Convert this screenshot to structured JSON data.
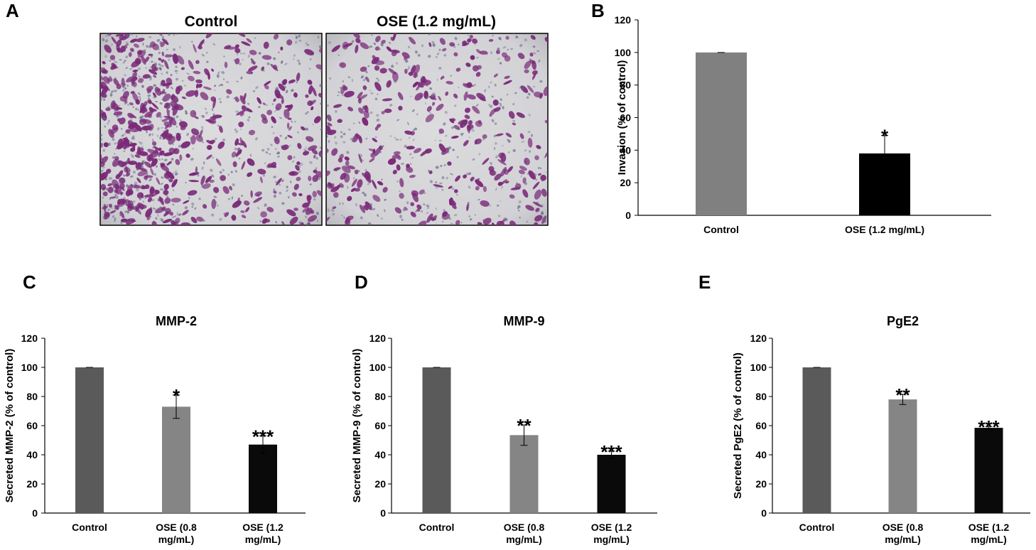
{
  "panels": {
    "A": {
      "letter": "A",
      "images": [
        {
          "title": "Control",
          "density": "high"
        },
        {
          "title": "OSE (1.2 mg/mL)",
          "density": "low"
        }
      ],
      "colors": {
        "stain": "#7a2a78",
        "background": "#d8d8da"
      }
    }
  },
  "chart_data": [
    {
      "letter": "B",
      "type": "bar",
      "title": "",
      "ylabel": "Invasion (% of control)",
      "xlabel": "",
      "ylim": [
        0,
        120
      ],
      "yticks": [
        0,
        20,
        40,
        60,
        80,
        100,
        120
      ],
      "grid": false,
      "categories": [
        [
          "Control"
        ],
        [
          "OSE (1.2 mg/mL)"
        ]
      ],
      "values": [
        100,
        38
      ],
      "errors": [
        0,
        11
      ],
      "significance": [
        "",
        "*"
      ],
      "colors": [
        "#808080",
        "#000000"
      ]
    },
    {
      "letter": "C",
      "type": "bar",
      "title": "MMP-2",
      "ylabel": "Secreted MMP-2 (% of control)",
      "xlabel": "",
      "ylim": [
        0,
        120
      ],
      "yticks": [
        0,
        20,
        40,
        60,
        80,
        100,
        120
      ],
      "grid": false,
      "categories": [
        [
          "Control"
        ],
        [
          "OSE (0.8",
          "mg/mL)"
        ],
        [
          "OSE (1.2",
          "mg/mL)"
        ]
      ],
      "values": [
        100,
        73,
        47
      ],
      "errors": [
        0,
        8,
        6
      ],
      "significance": [
        "",
        "*",
        "***"
      ],
      "colors": [
        "#5a5a5a",
        "#858585",
        "#0a0a0a"
      ]
    },
    {
      "letter": "D",
      "type": "bar",
      "title": "MMP-9",
      "ylabel": "Secreted MMP-9 (% of control)",
      "xlabel": "",
      "ylim": [
        0,
        120
      ],
      "yticks": [
        0,
        20,
        40,
        60,
        80,
        100,
        120
      ],
      "grid": false,
      "categories": [
        [
          "Control"
        ],
        [
          "OSE (0.8",
          "mg/mL)"
        ],
        [
          "OSE (1.2",
          "mg/mL)"
        ]
      ],
      "values": [
        100,
        53.5,
        40
      ],
      "errors": [
        0,
        7,
        2.5
      ],
      "significance": [
        "",
        "**",
        "***"
      ],
      "colors": [
        "#5a5a5a",
        "#858585",
        "#0a0a0a"
      ]
    },
    {
      "letter": "E",
      "type": "bar",
      "title": "PgE2",
      "ylabel": "Secreted PgE2 (% of control)",
      "xlabel": "",
      "ylim": [
        0,
        120
      ],
      "yticks": [
        0,
        20,
        40,
        60,
        80,
        100,
        120
      ],
      "grid": false,
      "categories": [
        [
          "Control"
        ],
        [
          "OSE (0.8",
          "mg/mL)"
        ],
        [
          "OSE (1.2",
          "mg/mL)"
        ]
      ],
      "values": [
        100,
        78,
        58.5
      ],
      "errors": [
        0,
        3.5,
        1
      ],
      "significance": [
        "",
        "**",
        "***"
      ],
      "colors": [
        "#5a5a5a",
        "#858585",
        "#0a0a0a"
      ]
    }
  ]
}
